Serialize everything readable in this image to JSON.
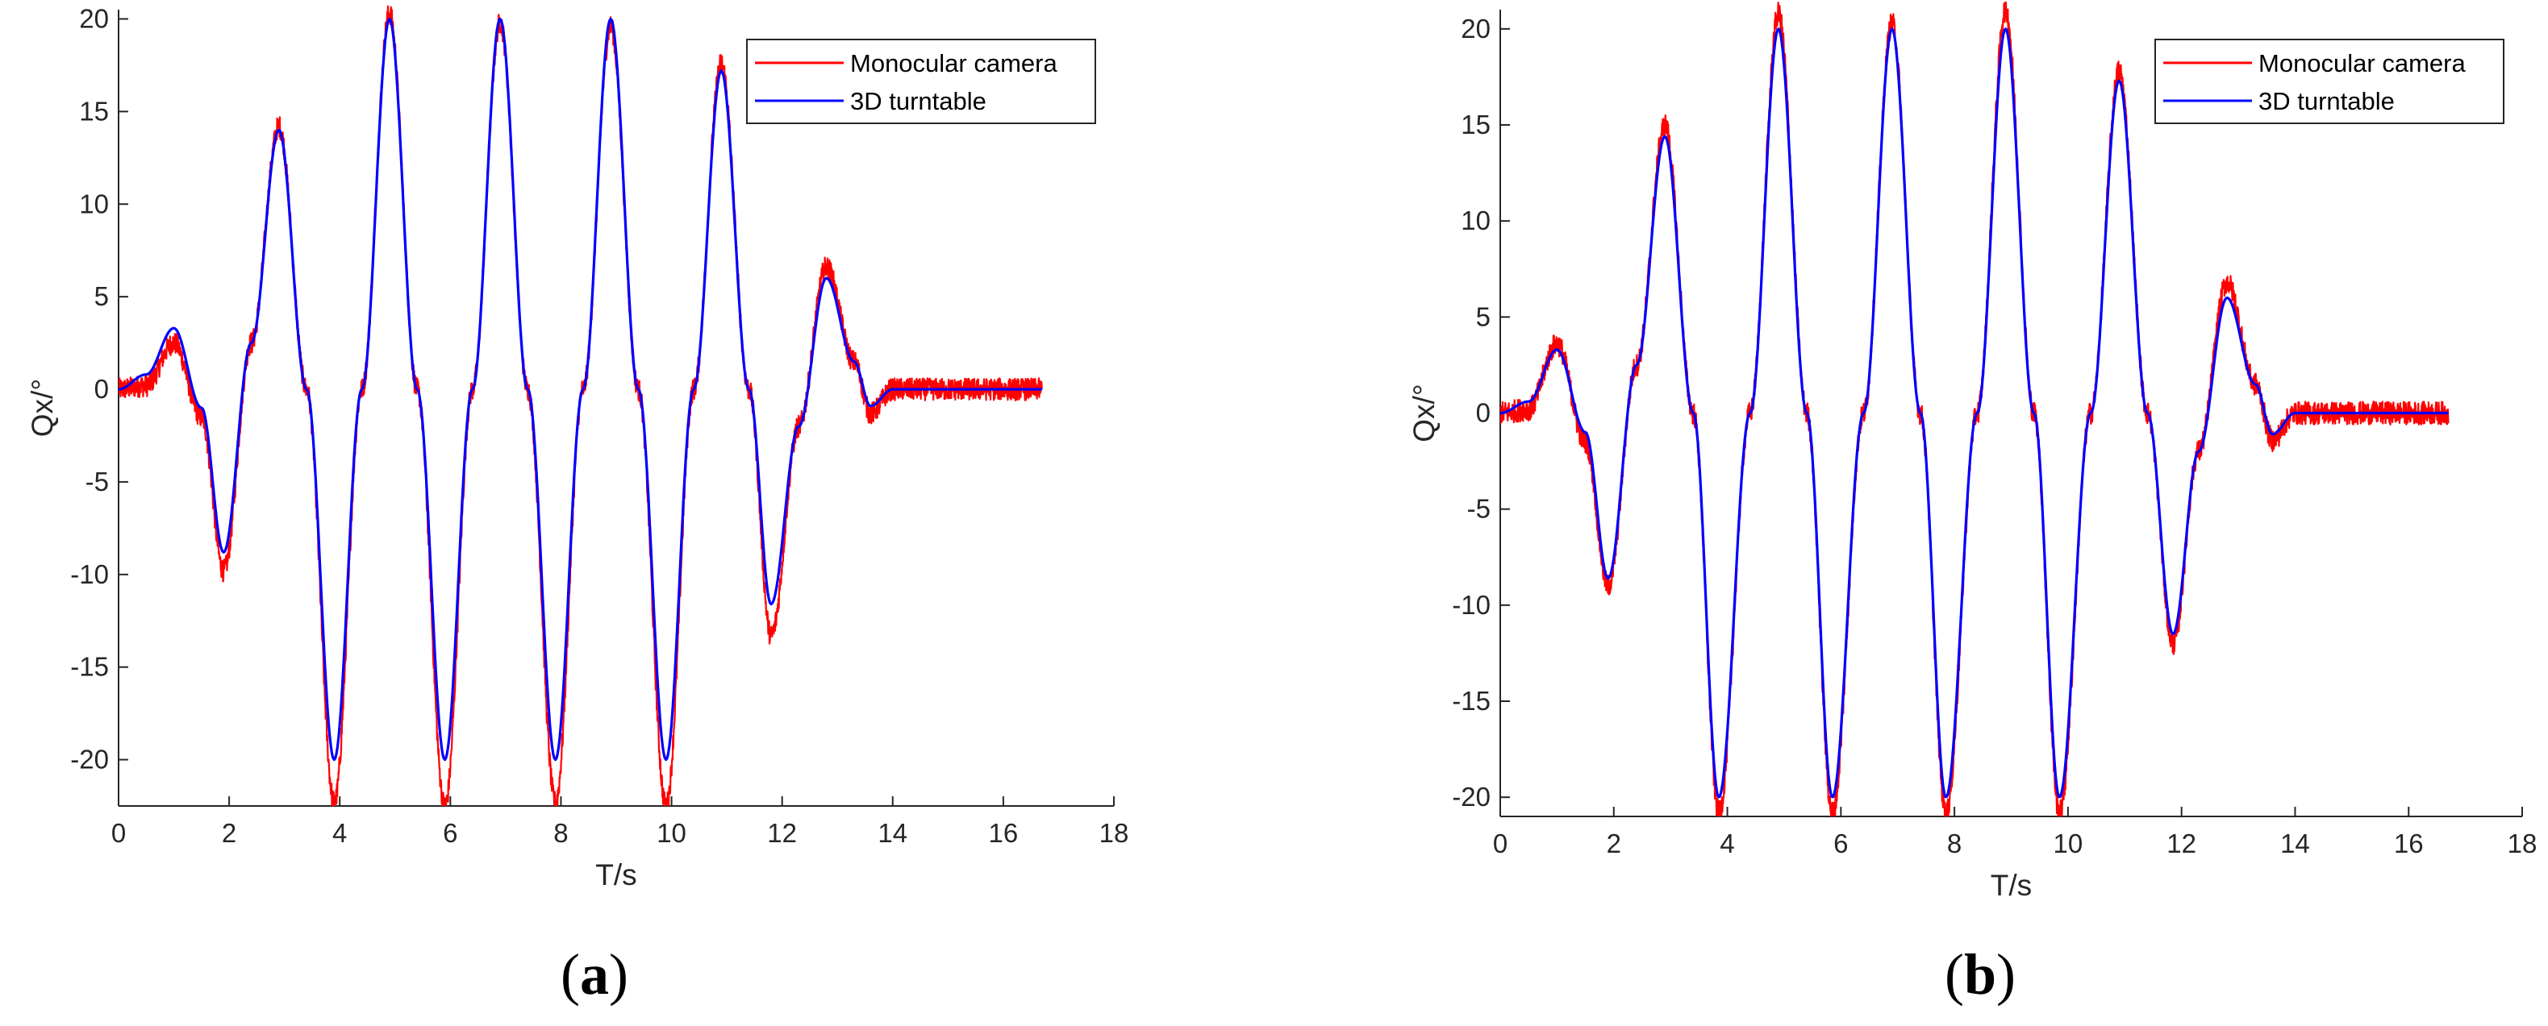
{
  "colors": {
    "monocular": "#ff0000",
    "turntable": "#0000ff",
    "axis": "#262626",
    "background": "#ffffff"
  },
  "chart_data": [
    {
      "type": "line",
      "panel_label": "a",
      "xlabel": "T/s",
      "ylabel": "Qx/°",
      "xlim": [
        0,
        18
      ],
      "ylim": [
        -22.5,
        20.5
      ],
      "xticks": [
        0,
        2,
        4,
        6,
        8,
        10,
        12,
        14,
        16,
        18
      ],
      "yticks": [
        -20,
        -15,
        -10,
        -5,
        0,
        5,
        10,
        15,
        20
      ],
      "grid": false,
      "legend_position": "top-right",
      "data_end_x": 16.7,
      "noise_amplitude": 0.6,
      "series": [
        {
          "name": "Monocular camera",
          "color": "#ff0000",
          "x": [
            0,
            0.5,
            1.0,
            1.5,
            1.9,
            2.4,
            2.9,
            3.4,
            3.9,
            4.4,
            4.9,
            5.4,
            5.9,
            6.4,
            6.9,
            7.4,
            7.9,
            8.4,
            8.9,
            9.4,
            9.9,
            10.4,
            10.9,
            11.4,
            11.8,
            12.3,
            12.8,
            13.3,
            13.6,
            14.0,
            16.7
          ],
          "values": [
            0,
            0.2,
            2.5,
            -1.5,
            -9.8,
            2.5,
            14.2,
            0,
            -22.3,
            0,
            20.3,
            0,
            -22.5,
            0,
            19.8,
            0,
            -22.3,
            0,
            19.6,
            0,
            -22.5,
            0,
            17.6,
            0,
            -13.3,
            -2,
            6.6,
            1.5,
            -1.3,
            0,
            0
          ]
        },
        {
          "name": "3D turntable",
          "color": "#0000ff",
          "x": [
            0,
            0.5,
            1.0,
            1.5,
            1.9,
            2.4,
            2.9,
            3.4,
            3.9,
            4.4,
            4.9,
            5.4,
            5.9,
            6.4,
            6.9,
            7.4,
            7.9,
            8.4,
            8.9,
            9.4,
            9.9,
            10.4,
            10.9,
            11.4,
            11.8,
            12.3,
            12.8,
            13.3,
            13.6,
            14.0,
            16.7
          ],
          "values": [
            0,
            0.8,
            3.3,
            -1.0,
            -8.8,
            2.5,
            14.0,
            0,
            -20.0,
            0,
            20.0,
            0,
            -20.0,
            0,
            20.0,
            0,
            -20.0,
            0,
            20.0,
            0,
            -20.0,
            0,
            17.2,
            0,
            -11.6,
            -2,
            6.0,
            1.5,
            -0.9,
            0,
            0
          ]
        }
      ]
    },
    {
      "type": "line",
      "panel_label": "b",
      "xlabel": "T/s",
      "ylabel": "Qx/°",
      "xlim": [
        0,
        18
      ],
      "ylim": [
        -21,
        21
      ],
      "xticks": [
        0,
        2,
        4,
        6,
        8,
        10,
        12,
        14,
        16,
        18
      ],
      "yticks": [
        -20,
        -15,
        -10,
        -5,
        0,
        5,
        10,
        15,
        20
      ],
      "grid": false,
      "legend_position": "top-right",
      "data_end_x": 16.7,
      "noise_amplitude": 0.6,
      "series": [
        {
          "name": "Monocular camera",
          "color": "#ff0000",
          "x": [
            0,
            0.5,
            1.0,
            1.5,
            1.9,
            2.4,
            2.9,
            3.4,
            3.85,
            4.4,
            4.9,
            5.4,
            5.85,
            6.4,
            6.9,
            7.4,
            7.85,
            8.4,
            8.9,
            9.4,
            9.85,
            10.4,
            10.9,
            11.4,
            11.85,
            12.3,
            12.8,
            13.3,
            13.6,
            14.0,
            16.7
          ],
          "values": [
            0,
            0.2,
            3.6,
            -1.5,
            -9.0,
            2.5,
            15.0,
            0,
            -20.8,
            0,
            20.8,
            0,
            -20.8,
            0,
            20.3,
            0,
            -20.8,
            0,
            21.0,
            0,
            -20.8,
            0,
            17.8,
            0,
            -12.0,
            -2,
            6.8,
            1.5,
            -1.4,
            0,
            0
          ]
        },
        {
          "name": "3D turntable",
          "color": "#0000ff",
          "x": [
            0,
            0.5,
            1.0,
            1.5,
            1.9,
            2.4,
            2.9,
            3.4,
            3.85,
            4.4,
            4.9,
            5.4,
            5.85,
            6.4,
            6.9,
            7.4,
            7.85,
            8.4,
            8.9,
            9.4,
            9.85,
            10.4,
            10.9,
            11.4,
            11.85,
            12.3,
            12.8,
            13.3,
            13.6,
            14.0,
            16.7
          ],
          "values": [
            0,
            0.6,
            3.3,
            -1.0,
            -8.6,
            2.5,
            14.4,
            0,
            -20.0,
            0,
            20.0,
            0,
            -20.0,
            0,
            20.0,
            0,
            -20.0,
            0,
            20.0,
            0,
            -20.0,
            0,
            17.3,
            0,
            -11.5,
            -2,
            6.0,
            1.5,
            -1.1,
            0,
            0
          ]
        }
      ]
    }
  ]
}
